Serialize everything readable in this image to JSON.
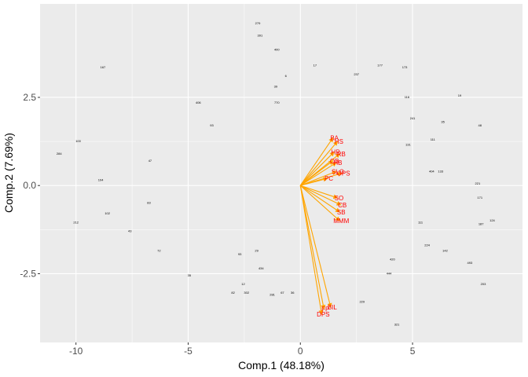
{
  "chart_data": {
    "type": "scatter",
    "subtype": "pca-biplot",
    "title": "",
    "xlabel": "Comp.1 (48.18%)",
    "ylabel": "Comp.2 (7.69%)",
    "xlim": [
      -11.6,
      9.9
    ],
    "ylim": [
      -4.45,
      5.15
    ],
    "xticks": [
      -10,
      -5,
      0,
      5
    ],
    "xtick_labels": [
      "-10",
      "-5",
      "0",
      "5"
    ],
    "yticks": [
      -2.5,
      0.0,
      2.5
    ],
    "ytick_labels": [
      "-2.5",
      "0.0",
      "2.5"
    ],
    "grid": true,
    "legend": "none",
    "colors": {
      "panel_bg": "#ebebeb",
      "grid_major": "#ffffff",
      "arrow": "#ffa500",
      "var_label": "#ff0000",
      "point_label": "#000000"
    },
    "loadings": [
      {
        "name": "BA",
        "x": 1.45,
        "y": 1.35
      },
      {
        "name": "HS",
        "x": 1.65,
        "y": 1.25
      },
      {
        "name": "HR",
        "x": 1.5,
        "y": 0.95
      },
      {
        "name": "RB",
        "x": 1.75,
        "y": 0.9
      },
      {
        "name": "OB",
        "x": 1.45,
        "y": 0.7
      },
      {
        "name": "HB",
        "x": 1.6,
        "y": 0.65
      },
      {
        "name": "SLG",
        "x": 1.6,
        "y": 0.4
      },
      {
        "name": "OPS",
        "x": 1.85,
        "y": 0.35
      },
      {
        "name": "PC",
        "x": 1.2,
        "y": 0.2
      },
      {
        "name": "SO",
        "x": 1.65,
        "y": -0.35
      },
      {
        "name": "CB",
        "x": 1.8,
        "y": -0.55
      },
      {
        "name": "SB",
        "x": 1.75,
        "y": -0.75
      },
      {
        "name": "MMM",
        "x": 1.75,
        "y": -1.0
      },
      {
        "name": "BIL",
        "x": 1.35,
        "y": -3.45
      },
      {
        "name": "FP",
        "x": 1.05,
        "y": -3.5
      },
      {
        "name": "DPS",
        "x": 0.95,
        "y": -3.65
      }
    ],
    "points": [
      {
        "label": "279",
        "x": -1.9,
        "y": 4.6
      },
      {
        "label": "391",
        "x": -1.8,
        "y": 4.25
      },
      {
        "label": "400",
        "x": -1.05,
        "y": 3.85
      },
      {
        "label": "17",
        "x": 0.65,
        "y": 3.4
      },
      {
        "label": "177",
        "x": 3.55,
        "y": 3.4
      },
      {
        "label": "173",
        "x": 4.65,
        "y": 3.35
      },
      {
        "label": "167",
        "x": -8.8,
        "y": 3.35
      },
      {
        "label": "6",
        "x": -0.65,
        "y": 3.1
      },
      {
        "label": "237",
        "x": 2.5,
        "y": 3.15
      },
      {
        "label": "39",
        "x": -1.1,
        "y": 2.8
      },
      {
        "label": "116",
        "x": 4.75,
        "y": 2.5
      },
      {
        "label": "19",
        "x": 7.1,
        "y": 2.55
      },
      {
        "label": "406",
        "x": -4.55,
        "y": 2.35
      },
      {
        "label": "770",
        "x": -1.05,
        "y": 2.35
      },
      {
        "label": "93",
        "x": -3.95,
        "y": 1.7
      },
      {
        "label": "48",
        "x": 8.0,
        "y": 1.7
      },
      {
        "label": "100",
        "x": -9.9,
        "y": 1.25
      },
      {
        "label": "284",
        "x": -10.75,
        "y": 0.9
      },
      {
        "label": "47",
        "x": -6.7,
        "y": 0.7
      },
      {
        "label": "104",
        "x": -8.9,
        "y": 0.15
      },
      {
        "label": "102",
        "x": -8.6,
        "y": -0.8
      },
      {
        "label": "212",
        "x": -10.0,
        "y": -1.05
      },
      {
        "label": "43",
        "x": -7.6,
        "y": -1.3
      },
      {
        "label": "72",
        "x": -6.3,
        "y": -1.85
      },
      {
        "label": "83",
        "x": -6.75,
        "y": -0.5
      },
      {
        "label": "35",
        "x": -4.95,
        "y": -2.55
      },
      {
        "label": "82",
        "x": -3.0,
        "y": -3.05
      },
      {
        "label": "302",
        "x": -2.4,
        "y": -3.05
      },
      {
        "label": "281",
        "x": -1.25,
        "y": -3.1
      },
      {
        "label": "67",
        "x": -0.8,
        "y": -3.05
      },
      {
        "label": "36",
        "x": -0.35,
        "y": -3.05
      },
      {
        "label": "321",
        "x": 4.3,
        "y": -3.95
      },
      {
        "label": "444",
        "x": 3.95,
        "y": -2.5
      },
      {
        "label": "420",
        "x": 4.1,
        "y": -2.1
      },
      {
        "label": "493",
        "x": 7.55,
        "y": -2.2
      },
      {
        "label": "203",
        "x": 8.15,
        "y": -2.8
      },
      {
        "label": "229",
        "x": 2.75,
        "y": -3.3
      },
      {
        "label": "124",
        "x": 8.55,
        "y": -1.0
      },
      {
        "label": "187",
        "x": 8.05,
        "y": -1.1
      },
      {
        "label": "221",
        "x": 7.9,
        "y": 0.05
      },
      {
        "label": "142",
        "x": 6.45,
        "y": -1.85
      },
      {
        "label": "111",
        "x": 5.35,
        "y": -1.05
      },
      {
        "label": "224",
        "x": 5.65,
        "y": -1.7
      },
      {
        "label": "171",
        "x": 8.0,
        "y": -0.35
      },
      {
        "label": "434",
        "x": -1.75,
        "y": -2.35
      },
      {
        "label": "29",
        "x": -1.95,
        "y": -1.85
      },
      {
        "label": "12",
        "x": -2.55,
        "y": -2.8
      },
      {
        "label": "93",
        "x": -2.7,
        "y": -1.95
      },
      {
        "label": "404",
        "x": 5.85,
        "y": 0.4
      },
      {
        "label": "133",
        "x": 6.25,
        "y": 0.4
      },
      {
        "label": "35",
        "x": 6.35,
        "y": 1.8
      },
      {
        "label": "111",
        "x": 5.9,
        "y": 1.3
      },
      {
        "label": "131",
        "x": 4.8,
        "y": 1.15
      },
      {
        "label": "241",
        "x": 5.0,
        "y": 1.9
      }
    ]
  }
}
